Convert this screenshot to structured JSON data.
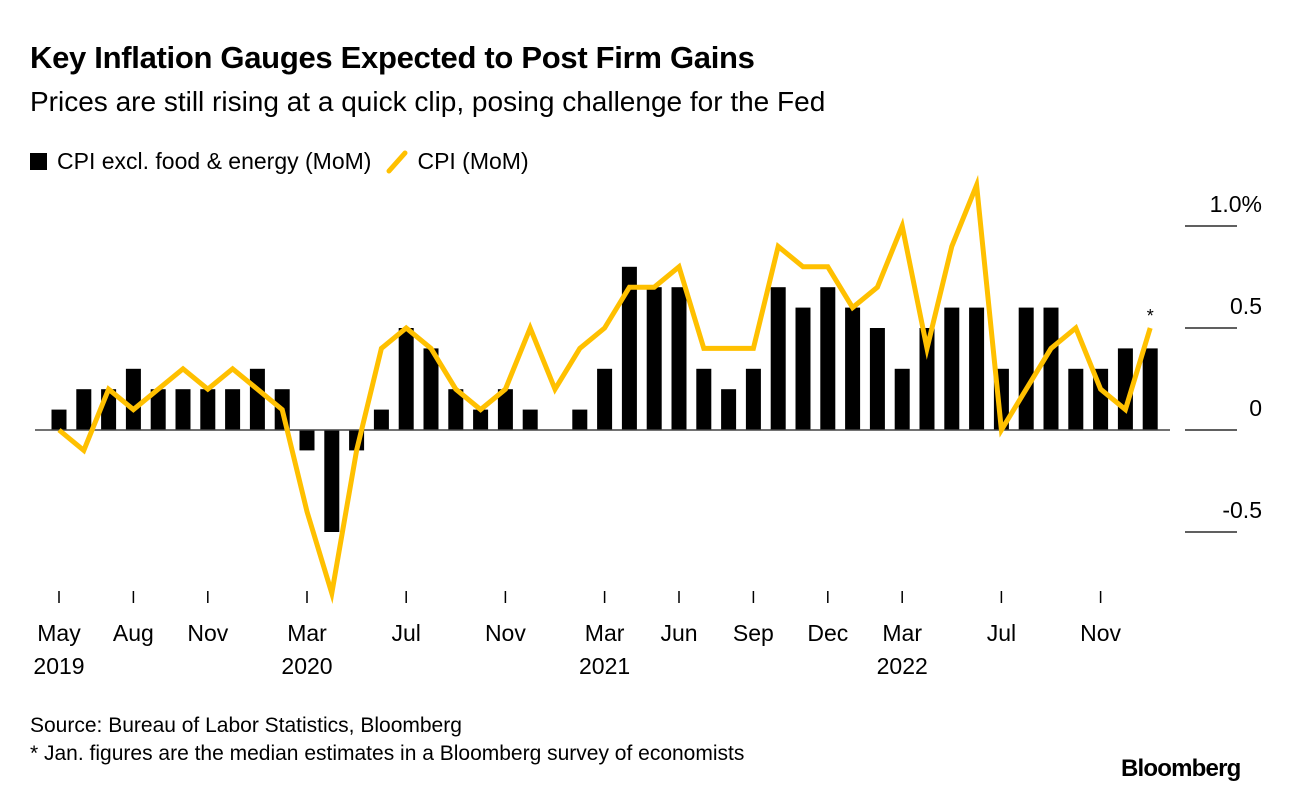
{
  "title": "Key Inflation Gauges Expected to Post Firm Gains",
  "subtitle": "Prices are still rising at a quick clip, posing challenge for the Fed",
  "source": "Source: Bureau of Labor Statistics, Bloomberg",
  "footnote": "* Jan. figures are the median estimates in a Bloomberg survey of economists",
  "logo": "Bloomberg",
  "colors": {
    "core": "#000000",
    "cpi": "#FFC000"
  },
  "chart_data": {
    "type": "bar+line",
    "x": [
      "2019-05",
      "2019-06",
      "2019-07",
      "2019-08",
      "2019-09",
      "2019-10",
      "2019-11",
      "2019-12",
      "2020-01",
      "2020-02",
      "2020-03",
      "2020-04",
      "2020-05",
      "2020-06",
      "2020-07",
      "2020-08",
      "2020-09",
      "2020-10",
      "2020-11",
      "2020-12",
      "2021-01",
      "2021-02",
      "2021-03",
      "2021-04",
      "2021-05",
      "2021-06",
      "2021-07",
      "2021-08",
      "2021-09",
      "2021-10",
      "2021-11",
      "2021-12",
      "2022-01",
      "2022-02",
      "2022-03",
      "2022-04",
      "2022-05",
      "2022-06",
      "2022-07",
      "2022-08",
      "2022-09",
      "2022-10",
      "2022-11",
      "2022-12",
      "2023-01"
    ],
    "series": [
      {
        "name": "CPI excl. food & energy (MoM)",
        "type": "bar",
        "values": [
          0.1,
          0.2,
          0.2,
          0.3,
          0.2,
          0.2,
          0.2,
          0.2,
          0.3,
          0.2,
          -0.1,
          -0.5,
          -0.1,
          0.1,
          0.5,
          0.4,
          0.2,
          0.1,
          0.2,
          0.1,
          0.0,
          0.1,
          0.3,
          0.8,
          0.7,
          0.7,
          0.3,
          0.2,
          0.3,
          0.7,
          0.6,
          0.7,
          0.6,
          0.5,
          0.3,
          0.5,
          0.6,
          0.6,
          0.3,
          0.6,
          0.6,
          0.3,
          0.3,
          0.4,
          0.4
        ]
      },
      {
        "name": "CPI (MoM)",
        "type": "line",
        "values": [
          0.0,
          -0.1,
          0.2,
          0.1,
          0.2,
          0.3,
          0.2,
          0.3,
          0.2,
          0.1,
          -0.4,
          -0.8,
          -0.1,
          0.4,
          0.5,
          0.4,
          0.2,
          0.1,
          0.2,
          0.5,
          0.2,
          0.4,
          0.5,
          0.7,
          0.7,
          0.8,
          0.4,
          0.4,
          0.4,
          0.9,
          0.8,
          0.8,
          0.6,
          0.7,
          1.0,
          0.4,
          0.9,
          1.2,
          0.0,
          0.2,
          0.4,
          0.5,
          0.2,
          0.1,
          0.5
        ]
      }
    ],
    "annotation": "*",
    "y_ticks": [
      {
        "v": 1.0,
        "label": "1.0%"
      },
      {
        "v": 0.5,
        "label": "0.5"
      },
      {
        "v": 0,
        "label": "0"
      },
      {
        "v": -0.5,
        "label": "-0.5"
      }
    ],
    "x_ticks": [
      {
        "i": 0,
        "label": "May",
        "year": "2019"
      },
      {
        "i": 3,
        "label": "Aug",
        "year": ""
      },
      {
        "i": 6,
        "label": "Nov",
        "year": ""
      },
      {
        "i": 10,
        "label": "Mar",
        "year": "2020"
      },
      {
        "i": 14,
        "label": "Jul",
        "year": ""
      },
      {
        "i": 18,
        "label": "Nov",
        "year": ""
      },
      {
        "i": 22,
        "label": "Mar",
        "year": "2021"
      },
      {
        "i": 25,
        "label": "Jun",
        "year": ""
      },
      {
        "i": 28,
        "label": "Sep",
        "year": ""
      },
      {
        "i": 31,
        "label": "Dec",
        "year": ""
      },
      {
        "i": 34,
        "label": "Mar",
        "year": "2022"
      },
      {
        "i": 38,
        "label": "Jul",
        "year": ""
      },
      {
        "i": 42,
        "label": "Nov",
        "year": ""
      }
    ],
    "ylim": [
      -0.8,
      1.2
    ],
    "legend": "top-left",
    "grid": false
  }
}
